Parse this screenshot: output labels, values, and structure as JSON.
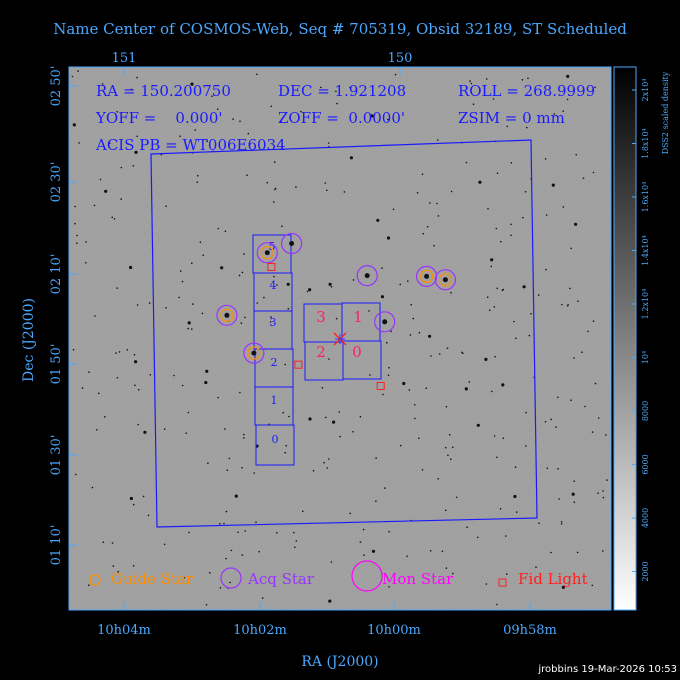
{
  "title": "Name Center of COSMOS-Web, Seq # 705319, Obsid 32189, ST Scheduled",
  "info": {
    "ra": "RA = 150.200750",
    "dec": "DEC = 1.921208",
    "roll": "ROLL = 268.9999",
    "yoff": "YOFF =    0.000'",
    "zoff": "ZOFF =  0.0000'",
    "zsim": "ZSIM = 0 mm",
    "acis": "ACIS PB = WT006E6034"
  },
  "axes": {
    "xlabel": "RA (J2000)",
    "ylabel": "Dec (J2000)",
    "bottom_ticks": [
      "10h04m",
      "10h02m",
      "10h00m",
      "09h58m"
    ],
    "top_ticks": [
      "151",
      "150"
    ],
    "left_ticks": [
      "02 50'",
      "02 30'",
      "02 10'",
      "01 50'",
      "01 30'",
      "01 10'"
    ]
  },
  "colorbar": {
    "label": "DSS2 scaled density",
    "ticks": [
      "2000",
      "4000",
      "6000",
      "8000",
      "10⁴",
      "1.2x10⁴",
      "1.4x10⁴",
      "1.6x10⁴",
      "1.8x10⁴",
      "2x10⁴"
    ]
  },
  "legend": {
    "guide": "Guide Star",
    "acq": "Acq Star",
    "mon": "Mon Star",
    "fid": "Fid Light"
  },
  "chips": {
    "acis_s": [
      "5",
      "4",
      "3",
      "2",
      "1",
      "0"
    ],
    "acis_i": [
      "3",
      "1",
      "2",
      "0"
    ]
  },
  "footer": "jrobbins 19-Mar-2026 10:53",
  "colors": {
    "guide": "#ff8c00",
    "acq": "#9933ff",
    "mon": "#ff00ff",
    "fid": "#ff2020",
    "frame": "#1a1aff",
    "text": "#4aa8ff"
  },
  "chart_data": {
    "type": "scatter",
    "title": "Name Center of COSMOS-Web, Seq # 705319, Obsid 32189, ST Scheduled",
    "xlabel": "RA (J2000)",
    "ylabel": "Dec (J2000)",
    "series": [
      {
        "name": "Guide Star",
        "ra_deg": [
          150.62,
          150.47,
          150.52,
          149.88,
          149.81
        ],
        "dec_deg": [
          2.009,
          2.241,
          1.869,
          2.153,
          2.141
        ]
      },
      {
        "name": "Acq Star",
        "ra_deg": [
          150.62,
          150.52,
          150.47,
          149.88,
          149.81,
          150.38,
          150.1,
          150.035
        ],
        "dec_deg": [
          2.009,
          1.869,
          2.241,
          2.153,
          2.141,
          2.275,
          2.156,
          1.985
        ]
      },
      {
        "name": "Fid Light",
        "ra_deg": [
          150.455,
          150.355,
          150.05
        ],
        "dec_deg": [
          2.188,
          1.826,
          1.747
        ]
      }
    ],
    "pointing": {
      "ra": 150.20075,
      "dec": 1.921208,
      "roll": 268.9999
    }
  }
}
